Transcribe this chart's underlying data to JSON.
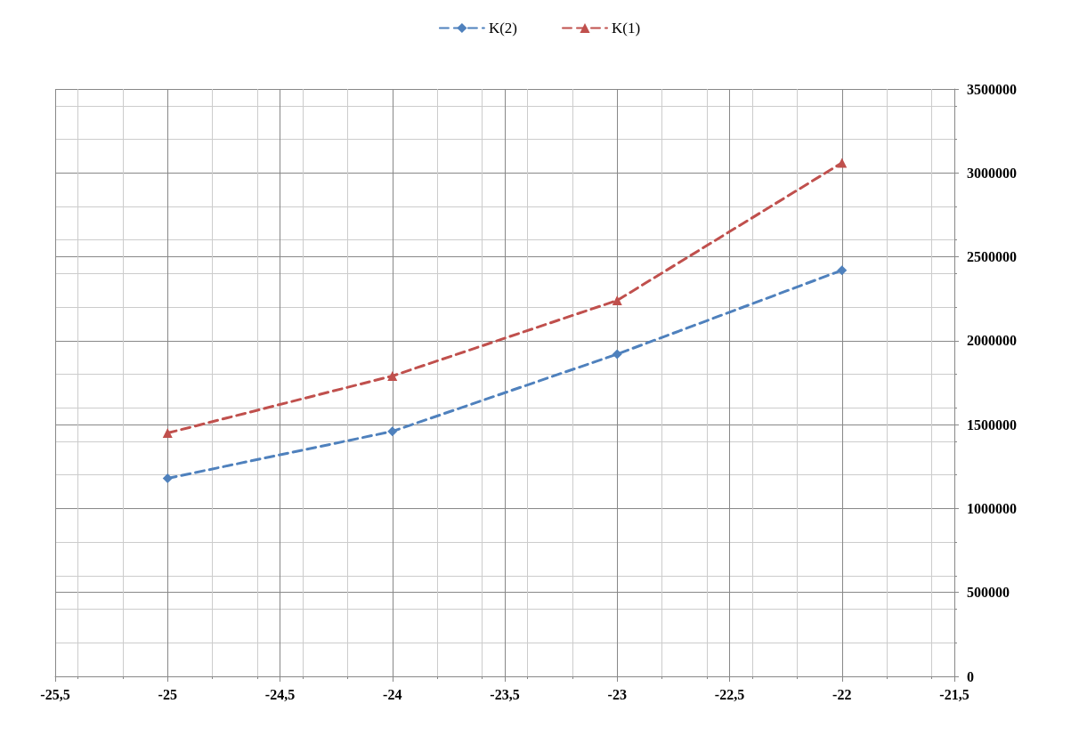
{
  "chart_data": {
    "type": "line",
    "x": [
      -25,
      -24,
      -23,
      -22
    ],
    "series": [
      {
        "name": "K(2)",
        "color": "#4f81bd",
        "values": [
          1180000,
          1460000,
          1920000,
          2420000
        ],
        "marker": "diamond",
        "line_style": "dashed"
      },
      {
        "name": "K(1)",
        "color": "#c0504d",
        "values": [
          1450000,
          1790000,
          2240000,
          3060000
        ],
        "marker": "triangle",
        "line_style": "dashed"
      }
    ],
    "xlim": [
      -25.5,
      -21.5
    ],
    "xticks": [
      {
        "value": -25.5,
        "label": "-25,5"
      },
      -25,
      {
        "value": -24.5,
        "label": "-24,5"
      },
      -24,
      {
        "value": -23.5,
        "label": "-23,5"
      },
      -23,
      {
        "value": -22.5,
        "label": "-22,5"
      },
      -22,
      {
        "value": -21.5,
        "label": "-21,5"
      }
    ],
    "ylim": [
      0,
      3500000
    ],
    "yticks": [
      0,
      500000,
      1000000,
      1500000,
      2000000,
      2500000,
      3000000,
      3500000
    ],
    "grid": true,
    "legend": "top"
  }
}
